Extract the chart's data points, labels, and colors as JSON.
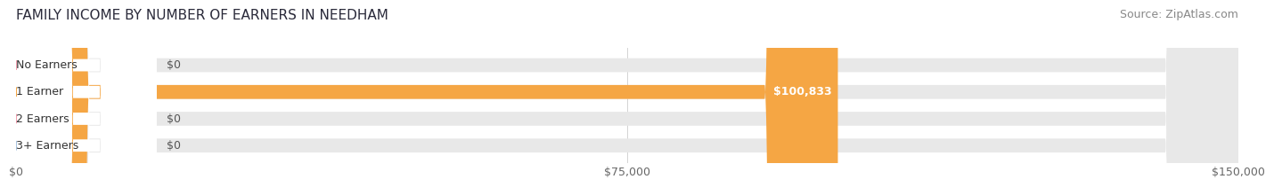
{
  "title": "FAMILY INCOME BY NUMBER OF EARNERS IN NEEDHAM",
  "source": "Source: ZipAtlas.com",
  "categories": [
    "No Earners",
    "1 Earner",
    "2 Earners",
    "3+ Earners"
  ],
  "values": [
    0,
    100833,
    0,
    0
  ],
  "bar_colors": [
    "#f4a0b0",
    "#f5a644",
    "#f4a0b0",
    "#a8c4e0"
  ],
  "value_labels": [
    "$0",
    "$100,833",
    "$0",
    "$0"
  ],
  "xlim": [
    0,
    150000
  ],
  "xticks": [
    0,
    75000,
    150000
  ],
  "xtick_labels": [
    "$0",
    "$75,000",
    "$150,000"
  ],
  "bar_height": 0.52,
  "bg_bar_color": "#e8e8e8",
  "title_fontsize": 11,
  "source_fontsize": 9,
  "label_fontsize": 9,
  "value_fontsize": 9
}
